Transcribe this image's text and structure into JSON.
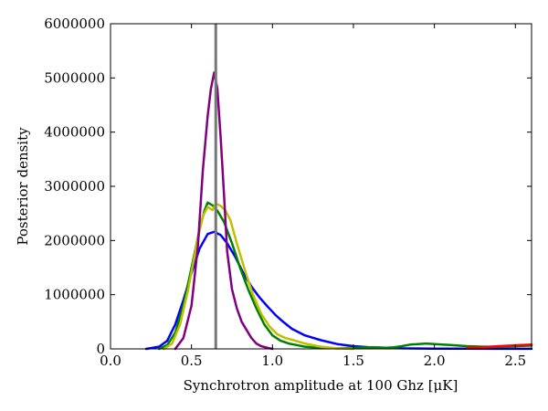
{
  "chart_data": {
    "type": "line",
    "xlabel": "Synchrotron amplitude at 100 Ghz [μK]",
    "ylabel": "Posterior density",
    "xlim": [
      0,
      2.6
    ],
    "ylim": [
      0,
      6000000
    ],
    "x_ticks": [
      {
        "value": 0.0,
        "label": "0.0"
      },
      {
        "value": 0.5,
        "label": "0.5"
      },
      {
        "value": 1.0,
        "label": "1.0"
      },
      {
        "value": 1.5,
        "label": "1.5"
      },
      {
        "value": 2.0,
        "label": "2.0"
      },
      {
        "value": 2.5,
        "label": "2.5"
      }
    ],
    "y_ticks": [
      {
        "value": 0,
        "label": "0"
      },
      {
        "value": 1000000,
        "label": "1000000"
      },
      {
        "value": 2000000,
        "label": "2000000"
      },
      {
        "value": 3000000,
        "label": "3000000"
      },
      {
        "value": 4000000,
        "label": "4000000"
      },
      {
        "value": 5000000,
        "label": "5000000"
      },
      {
        "value": 6000000,
        "label": "6000000"
      }
    ],
    "grid": false,
    "reference_line": {
      "x": 0.65,
      "color": "#777777"
    },
    "series": [
      {
        "color": "#0000ff",
        "points": [
          [
            0.22,
            0
          ],
          [
            0.3,
            40000
          ],
          [
            0.35,
            150000
          ],
          [
            0.4,
            450000
          ],
          [
            0.45,
            900000
          ],
          [
            0.5,
            1400000
          ],
          [
            0.55,
            1850000
          ],
          [
            0.6,
            2120000
          ],
          [
            0.64,
            2160000
          ],
          [
            0.68,
            2100000
          ],
          [
            0.72,
            1950000
          ],
          [
            0.77,
            1700000
          ],
          [
            0.82,
            1400000
          ],
          [
            0.87,
            1150000
          ],
          [
            0.92,
            950000
          ],
          [
            0.97,
            780000
          ],
          [
            1.02,
            620000
          ],
          [
            1.07,
            490000
          ],
          [
            1.12,
            370000
          ],
          [
            1.2,
            250000
          ],
          [
            1.3,
            160000
          ],
          [
            1.4,
            90000
          ],
          [
            1.5,
            50000
          ],
          [
            1.6,
            30000
          ],
          [
            1.7,
            20000
          ],
          [
            1.8,
            10000
          ],
          [
            2.0,
            5000
          ],
          [
            2.2,
            3000
          ],
          [
            2.4,
            2000
          ],
          [
            2.6,
            1000
          ]
        ]
      },
      {
        "color": "#008000",
        "points": [
          [
            0.3,
            0
          ],
          [
            0.35,
            70000
          ],
          [
            0.4,
            300000
          ],
          [
            0.45,
            800000
          ],
          [
            0.5,
            1500000
          ],
          [
            0.55,
            2200000
          ],
          [
            0.58,
            2550000
          ],
          [
            0.6,
            2700000
          ],
          [
            0.63,
            2650000
          ],
          [
            0.66,
            2550000
          ],
          [
            0.7,
            2350000
          ],
          [
            0.75,
            1950000
          ],
          [
            0.8,
            1500000
          ],
          [
            0.85,
            1100000
          ],
          [
            0.9,
            750000
          ],
          [
            0.95,
            450000
          ],
          [
            1.0,
            250000
          ],
          [
            1.05,
            150000
          ],
          [
            1.1,
            100000
          ],
          [
            1.15,
            70000
          ],
          [
            1.2,
            40000
          ],
          [
            1.3,
            20000
          ],
          [
            1.4,
            10000
          ],
          [
            1.5,
            20000
          ],
          [
            1.6,
            30000
          ],
          [
            1.7,
            20000
          ],
          [
            1.75,
            30000
          ],
          [
            1.8,
            50000
          ],
          [
            1.85,
            80000
          ],
          [
            1.9,
            90000
          ],
          [
            1.95,
            100000
          ],
          [
            2.0,
            90000
          ],
          [
            2.05,
            80000
          ],
          [
            2.1,
            70000
          ],
          [
            2.2,
            50000
          ],
          [
            2.3,
            40000
          ],
          [
            2.4,
            40000
          ],
          [
            2.5,
            50000
          ],
          [
            2.6,
            60000
          ]
        ]
      },
      {
        "color": "#bfbf00",
        "points": [
          [
            0.33,
            0
          ],
          [
            0.38,
            100000
          ],
          [
            0.43,
            450000
          ],
          [
            0.48,
            1100000
          ],
          [
            0.53,
            1900000
          ],
          [
            0.57,
            2450000
          ],
          [
            0.6,
            2620000
          ],
          [
            0.63,
            2560000
          ],
          [
            0.65,
            2680000
          ],
          [
            0.68,
            2640000
          ],
          [
            0.71,
            2550000
          ],
          [
            0.74,
            2380000
          ],
          [
            0.78,
            1950000
          ],
          [
            0.83,
            1450000
          ],
          [
            0.88,
            1000000
          ],
          [
            0.93,
            650000
          ],
          [
            0.98,
            420000
          ],
          [
            1.03,
            270000
          ],
          [
            1.08,
            200000
          ],
          [
            1.13,
            160000
          ],
          [
            1.2,
            100000
          ],
          [
            1.3,
            40000
          ],
          [
            1.4,
            10000
          ],
          [
            1.5,
            0
          ]
        ]
      },
      {
        "color": "#800080",
        "points": [
          [
            0.4,
            0
          ],
          [
            0.45,
            200000
          ],
          [
            0.5,
            800000
          ],
          [
            0.54,
            1900000
          ],
          [
            0.57,
            3300000
          ],
          [
            0.6,
            4300000
          ],
          [
            0.62,
            4800000
          ],
          [
            0.64,
            5100000
          ],
          [
            0.66,
            4800000
          ],
          [
            0.68,
            3900000
          ],
          [
            0.7,
            2900000
          ],
          [
            0.72,
            1800000
          ],
          [
            0.75,
            1100000
          ],
          [
            0.78,
            750000
          ],
          [
            0.81,
            500000
          ],
          [
            0.84,
            350000
          ],
          [
            0.87,
            200000
          ],
          [
            0.9,
            100000
          ],
          [
            0.93,
            50000
          ],
          [
            0.97,
            20000
          ],
          [
            1.0,
            0
          ]
        ]
      },
      {
        "color": "#ff0000",
        "points": [
          [
            2.2,
            20000
          ],
          [
            2.3,
            30000
          ],
          [
            2.4,
            50000
          ],
          [
            2.5,
            65000
          ],
          [
            2.6,
            80000
          ]
        ]
      }
    ]
  }
}
